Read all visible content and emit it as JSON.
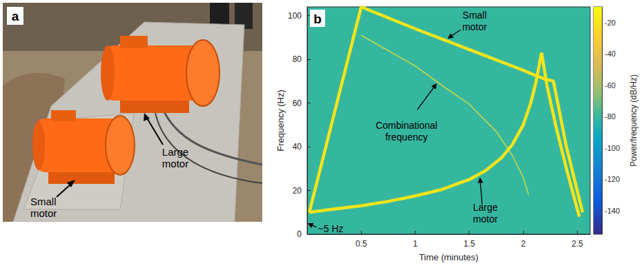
{
  "photo": {
    "letter": "a",
    "labels": [
      "Small motor",
      "Large motor"
    ]
  },
  "chart_data": {
    "type": "line",
    "letter": "b",
    "x_label": "Time (minutes)",
    "y_label": "Frequency (Hz)",
    "xlim": [
      0,
      2.62
    ],
    "xticks": [
      0.5,
      1,
      1.5,
      2,
      2.5
    ],
    "ylim": [
      0,
      104
    ],
    "yticks": [
      0,
      20,
      40,
      60,
      80,
      100
    ],
    "grid": false,
    "annotations": [
      "~5 Hz"
    ],
    "series": [
      {
        "name": "Small motor",
        "color": "#f7e41c",
        "line_style": "thick",
        "x": [
          0.02,
          0.5,
          1.0,
          1.5,
          2.0,
          2.12,
          2.2,
          2.28,
          2.4,
          2.55
        ],
        "values": [
          10,
          104,
          94,
          84.5,
          75,
          72.5,
          71,
          70,
          40,
          10
        ]
      },
      {
        "name": "Large motor",
        "color": "#f7e41c",
        "line_style": "thick",
        "x": [
          0.02,
          0.25,
          0.5,
          0.75,
          1.0,
          1.25,
          1.5,
          1.65,
          1.8,
          1.9,
          2.0,
          2.07,
          2.12,
          2.17,
          2.22,
          2.3,
          2.4,
          2.52
        ],
        "values": [
          10,
          11.5,
          13,
          15,
          17.5,
          20.5,
          25,
          29,
          35,
          41,
          50,
          60,
          70,
          83,
          68,
          50,
          30,
          8
        ]
      },
      {
        "name": "Combinational frequency",
        "color": "#c5d64a",
        "line_style": "thin",
        "x": [
          0.5,
          0.75,
          1.0,
          1.25,
          1.5,
          1.75,
          1.9,
          2.0,
          2.05
        ],
        "values": [
          91,
          84,
          77,
          68,
          59.5,
          47,
          36,
          26,
          18
        ]
      }
    ],
    "colorbar": {
      "label": "Power/frequency (dB/Hz)",
      "range": [
        -155,
        -10
      ],
      "ticks": [
        -20,
        -40,
        -60,
        -80,
        -100,
        -120,
        -140
      ]
    }
  }
}
